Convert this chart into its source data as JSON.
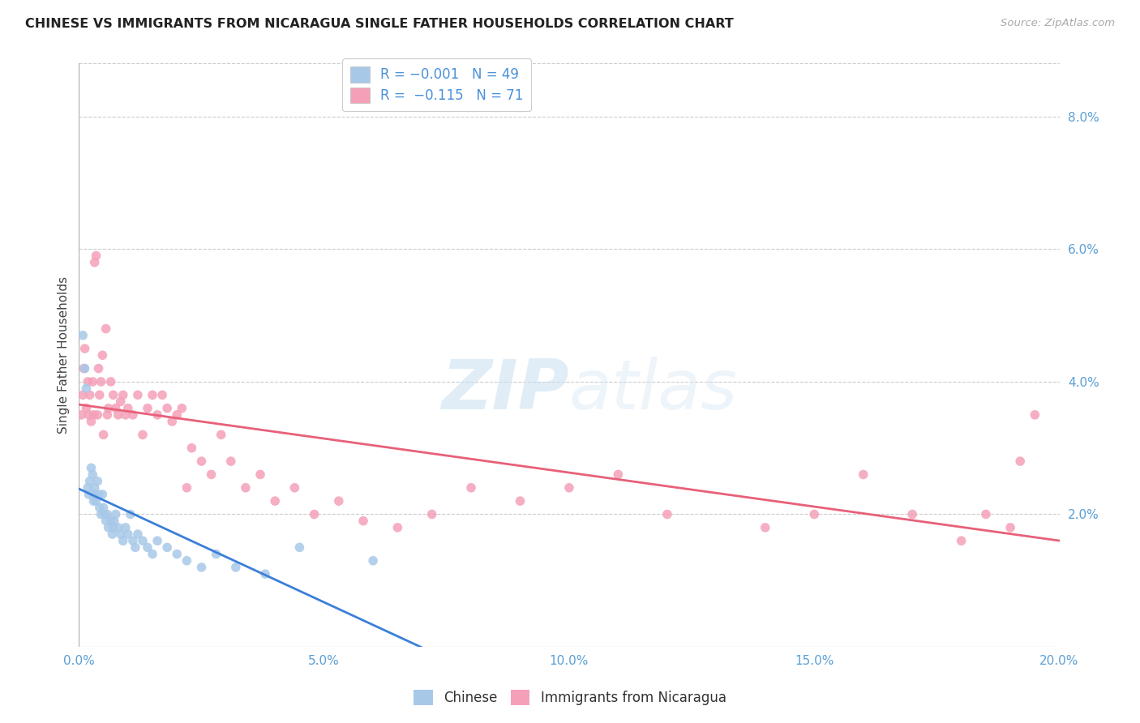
{
  "title": "CHINESE VS IMMIGRANTS FROM NICARAGUA SINGLE FATHER HOUSEHOLDS CORRELATION CHART",
  "source": "Source: ZipAtlas.com",
  "ylabel": "Single Father Households",
  "xlim": [
    0.0,
    0.2
  ],
  "ylim": [
    0.0,
    0.088
  ],
  "xticks": [
    0.0,
    0.05,
    0.1,
    0.15,
    0.2
  ],
  "xticklabels": [
    "0.0%",
    "5.0%",
    "10.0%",
    "15.0%",
    "20.0%"
  ],
  "yticks_right": [
    0.02,
    0.04,
    0.06,
    0.08
  ],
  "yticklabels_right": [
    "2.0%",
    "4.0%",
    "6.0%",
    "8.0%"
  ],
  "legend_labels": [
    "Chinese",
    "Immigrants from Nicaragua"
  ],
  "color_chinese": "#a8c8e8",
  "color_nicaragua": "#f4a0b8",
  "line_color_chinese": "#3a7fd9",
  "line_color_nicaragua": "#e8607a",
  "watermark_zip": "ZIP",
  "watermark_atlas": "atlas",
  "chinese_x": [
    0.0008,
    0.0012,
    0.0015,
    0.0018,
    0.002,
    0.0022,
    0.0025,
    0.0028,
    0.003,
    0.003,
    0.0032,
    0.0035,
    0.0038,
    0.004,
    0.0042,
    0.0045,
    0.0048,
    0.005,
    0.0052,
    0.0055,
    0.0058,
    0.006,
    0.0065,
    0.0068,
    0.007,
    0.0072,
    0.0075,
    0.008,
    0.0085,
    0.009,
    0.0095,
    0.01,
    0.0105,
    0.011,
    0.0115,
    0.012,
    0.013,
    0.014,
    0.015,
    0.016,
    0.018,
    0.02,
    0.022,
    0.025,
    0.028,
    0.032,
    0.038,
    0.045,
    0.06
  ],
  "chinese_y": [
    0.047,
    0.042,
    0.039,
    0.024,
    0.023,
    0.025,
    0.027,
    0.026,
    0.023,
    0.022,
    0.024,
    0.022,
    0.025,
    0.023,
    0.021,
    0.02,
    0.023,
    0.021,
    0.02,
    0.019,
    0.02,
    0.018,
    0.019,
    0.017,
    0.018,
    0.019,
    0.02,
    0.018,
    0.017,
    0.016,
    0.018,
    0.017,
    0.02,
    0.016,
    0.015,
    0.017,
    0.016,
    0.015,
    0.014,
    0.016,
    0.015,
    0.014,
    0.013,
    0.012,
    0.014,
    0.012,
    0.011,
    0.015,
    0.013
  ],
  "nicaragua_x": [
    0.0005,
    0.0008,
    0.001,
    0.0012,
    0.0015,
    0.0018,
    0.002,
    0.0022,
    0.0025,
    0.0028,
    0.003,
    0.0032,
    0.0035,
    0.0038,
    0.004,
    0.0042,
    0.0045,
    0.0048,
    0.005,
    0.0055,
    0.0058,
    0.006,
    0.0065,
    0.007,
    0.0075,
    0.008,
    0.0085,
    0.009,
    0.0095,
    0.01,
    0.011,
    0.012,
    0.013,
    0.014,
    0.015,
    0.016,
    0.017,
    0.018,
    0.019,
    0.02,
    0.021,
    0.022,
    0.023,
    0.025,
    0.027,
    0.029,
    0.031,
    0.034,
    0.037,
    0.04,
    0.044,
    0.048,
    0.053,
    0.058,
    0.065,
    0.072,
    0.08,
    0.09,
    0.1,
    0.11,
    0.12,
    0.14,
    0.15,
    0.16,
    0.17,
    0.18,
    0.185,
    0.19,
    0.192,
    0.195
  ],
  "nicaragua_y": [
    0.035,
    0.038,
    0.042,
    0.045,
    0.036,
    0.04,
    0.035,
    0.038,
    0.034,
    0.04,
    0.035,
    0.058,
    0.059,
    0.035,
    0.042,
    0.038,
    0.04,
    0.044,
    0.032,
    0.048,
    0.035,
    0.036,
    0.04,
    0.038,
    0.036,
    0.035,
    0.037,
    0.038,
    0.035,
    0.036,
    0.035,
    0.038,
    0.032,
    0.036,
    0.038,
    0.035,
    0.038,
    0.036,
    0.034,
    0.035,
    0.036,
    0.024,
    0.03,
    0.028,
    0.026,
    0.032,
    0.028,
    0.024,
    0.026,
    0.022,
    0.024,
    0.02,
    0.022,
    0.019,
    0.018,
    0.02,
    0.024,
    0.022,
    0.024,
    0.026,
    0.02,
    0.018,
    0.02,
    0.026,
    0.02,
    0.016,
    0.02,
    0.018,
    0.028,
    0.035
  ]
}
